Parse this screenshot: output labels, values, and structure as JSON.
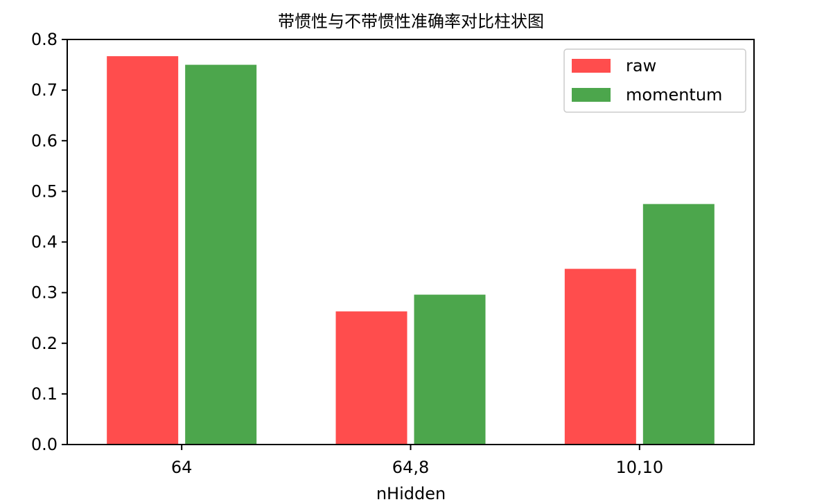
{
  "chart_data": {
    "type": "bar",
    "title": "带惯性与不带惯性准确率对比柱状图",
    "xlabel": "nHidden",
    "ylabel": "",
    "categories": [
      "64",
      "64,8",
      "10,10"
    ],
    "series": [
      {
        "name": "raw",
        "color": "#ff4d4d",
        "values": [
          0.767,
          0.263,
          0.347
        ]
      },
      {
        "name": "momentum",
        "color": "#4ca64c",
        "values": [
          0.75,
          0.296,
          0.475
        ]
      }
    ],
    "ylim": [
      0,
      0.8
    ],
    "yticks": [
      "0.0",
      "0.1",
      "0.2",
      "0.3",
      "0.4",
      "0.5",
      "0.6",
      "0.7",
      "0.8"
    ],
    "grid": false,
    "legend_position": "top-right"
  }
}
